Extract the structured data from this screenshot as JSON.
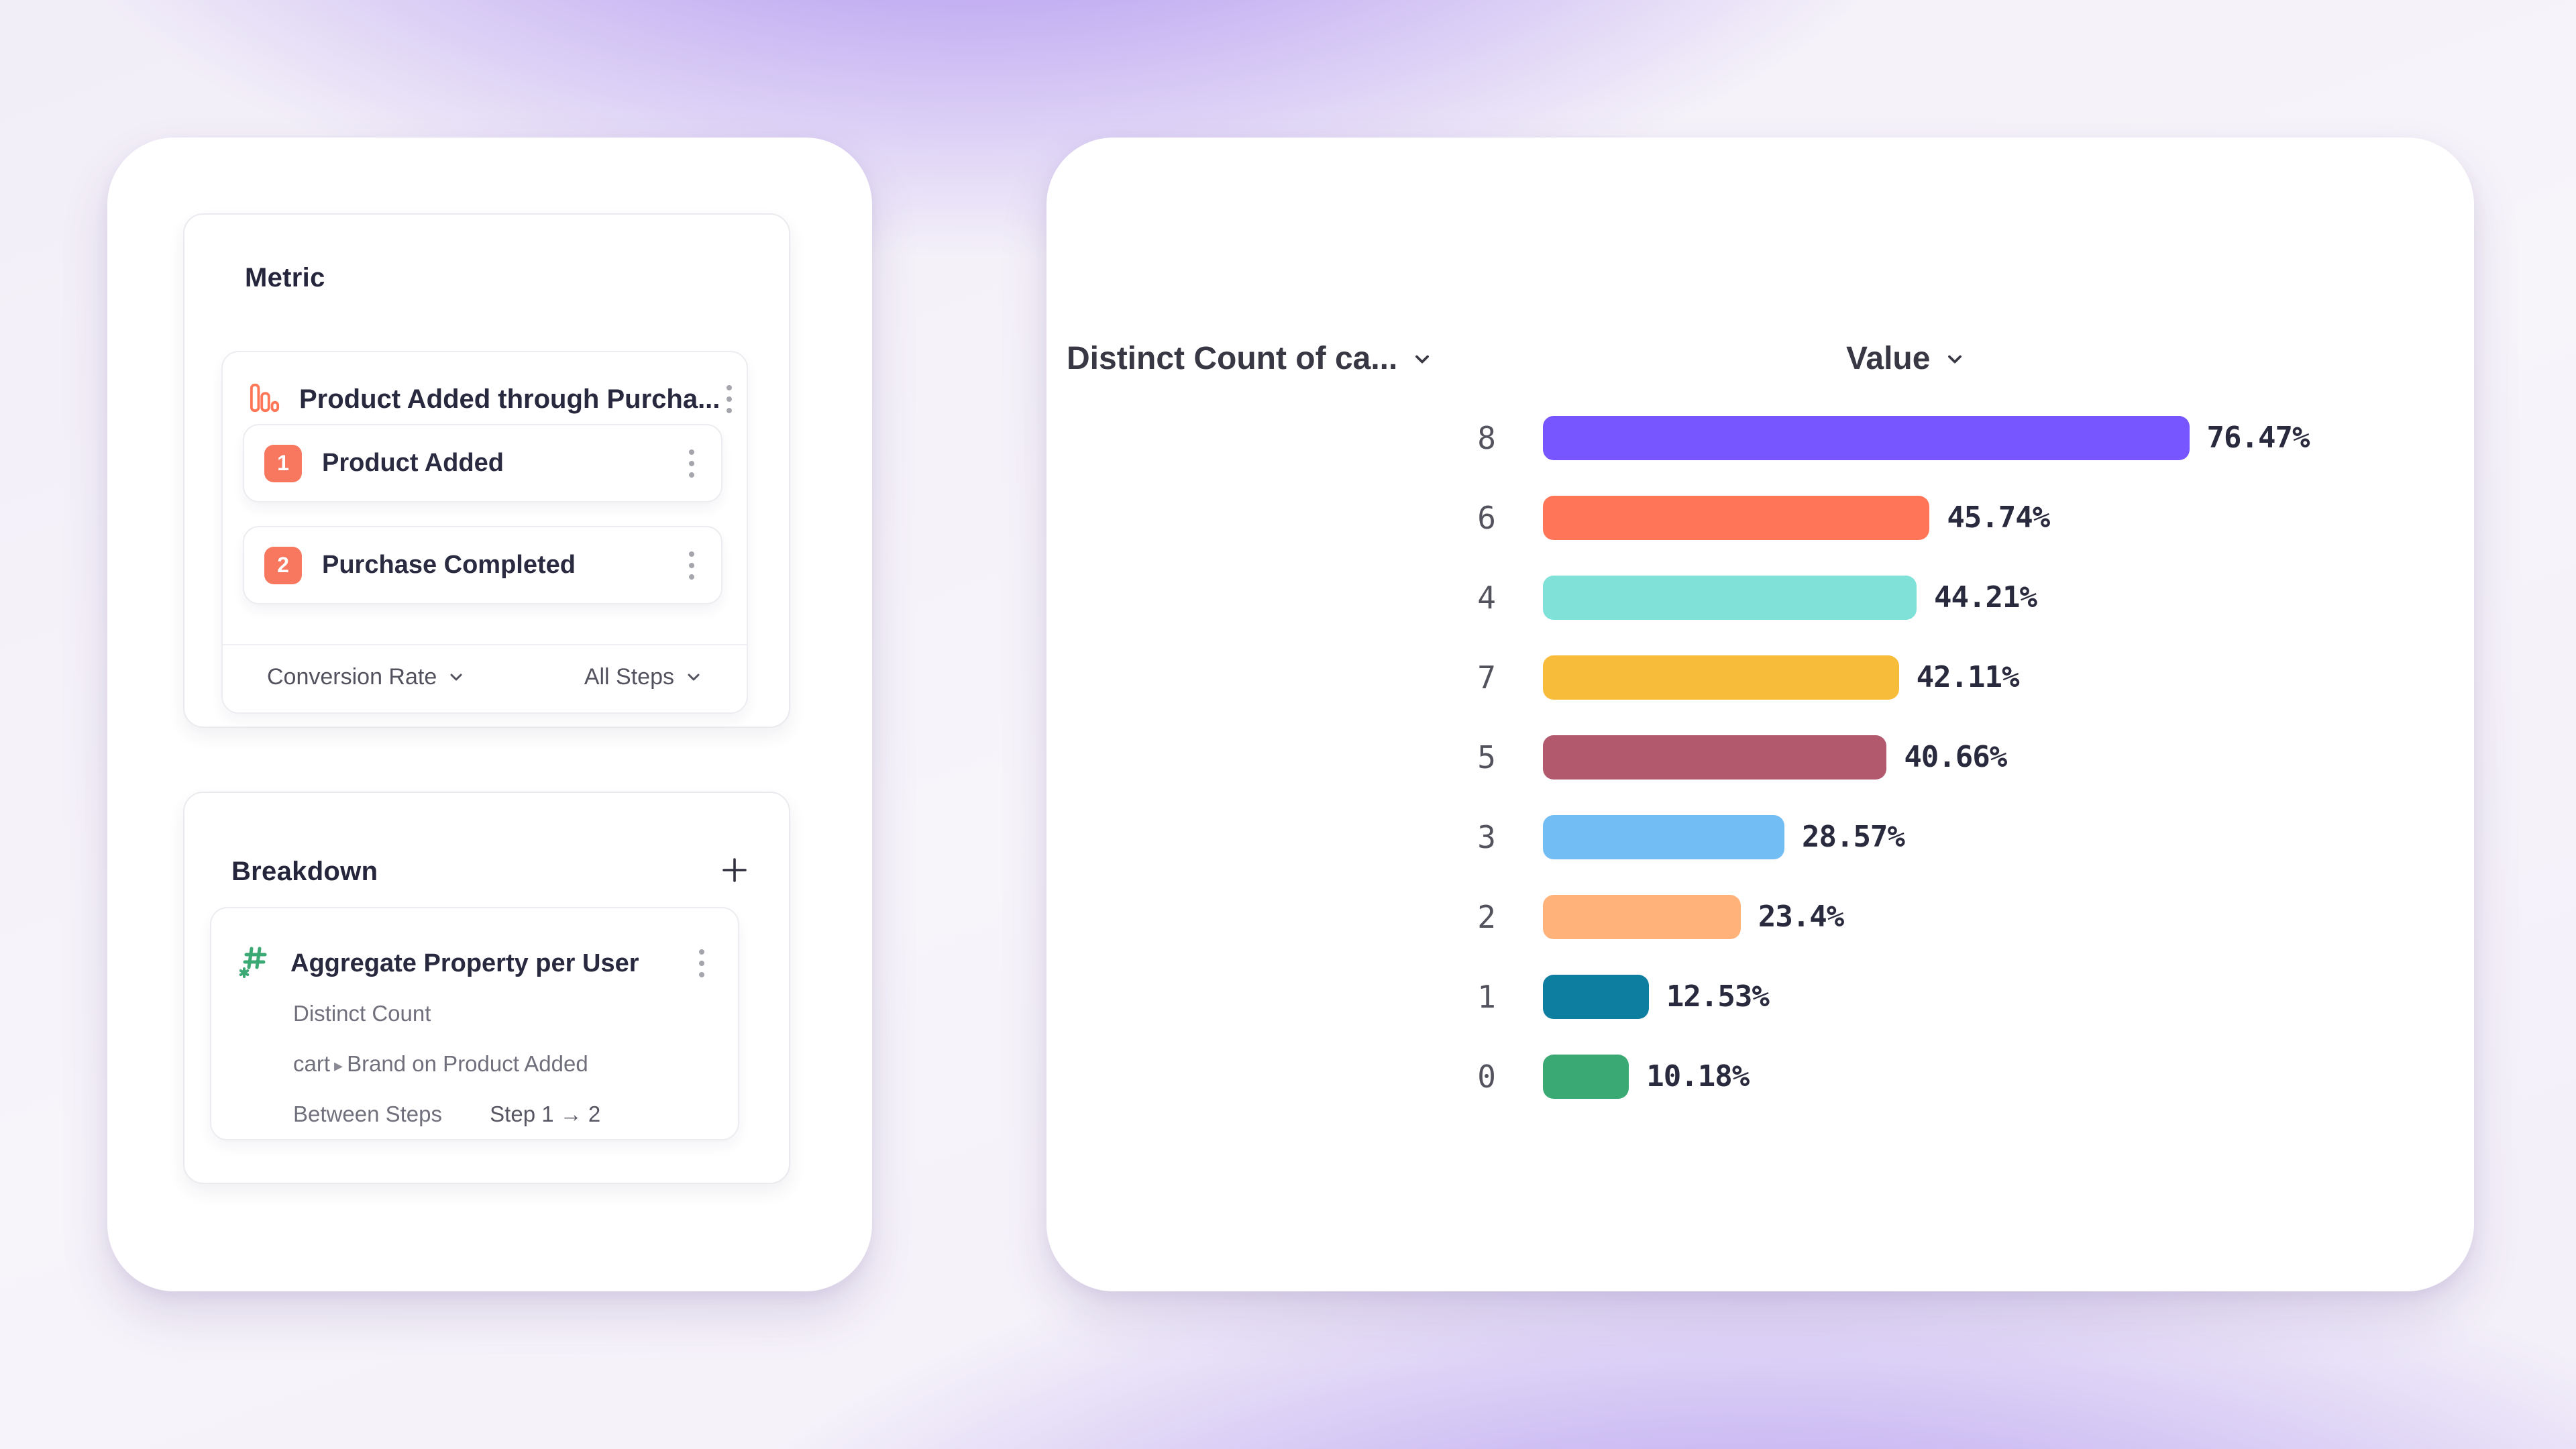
{
  "left_panel": {
    "metric": {
      "title": "Metric",
      "funnel_card": {
        "title": "Product Added through Purcha...",
        "steps": [
          {
            "number": "1",
            "label": "Product Added"
          },
          {
            "number": "2",
            "label": "Purchase Completed"
          }
        ],
        "counting_method": "Conversion Rate",
        "steps_scope": "All Steps"
      }
    },
    "breakdown": {
      "title": "Breakdown",
      "item": {
        "title": "Aggregate Property per User",
        "aggregation": "Distinct Count",
        "property_event": "cart",
        "property_separator": "▸",
        "property_rest": "Brand on Product Added",
        "between_steps_label": "Between Steps",
        "between_steps_value": "Step 1 → 2"
      }
    }
  },
  "chart": {
    "left_header": "Distinct Count of ca...",
    "right_header": "Value"
  },
  "chart_data": {
    "type": "bar",
    "orientation": "horizontal",
    "title": "",
    "column_headers": [
      "Distinct Count of ca...",
      "Value"
    ],
    "categories": [
      "8",
      "6",
      "4",
      "7",
      "5",
      "3",
      "2",
      "1",
      "0"
    ],
    "values": [
      76.47,
      45.74,
      44.21,
      42.11,
      40.66,
      28.57,
      23.4,
      12.53,
      10.18
    ],
    "value_labels": [
      "76.47%",
      "45.74%",
      "44.21%",
      "42.11%",
      "40.66%",
      "28.57%",
      "23.4%",
      "12.53%",
      "10.18%"
    ],
    "colors": [
      "#7856FF",
      "#FF7557",
      "#80E1D9",
      "#F8BC3B",
      "#B2596E",
      "#72BEF4",
      "#FFB27A",
      "#0D7EA0",
      "#3BA974"
    ],
    "unit": "%",
    "xlim": [
      0,
      100
    ],
    "grid": false,
    "legend": false
  },
  "accent_colors": {
    "step_badge": "#F8775F",
    "funnel_icon": "#FF7557",
    "breakdown_icon": "#3BA974"
  }
}
